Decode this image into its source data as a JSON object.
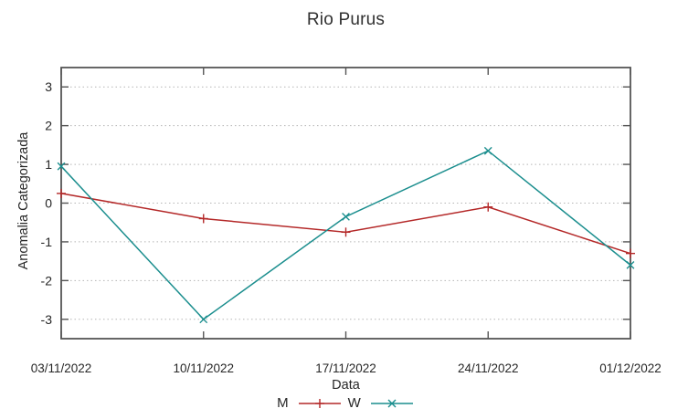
{
  "chart_data": {
    "type": "line",
    "title": "Rio Purus",
    "xlabel": "Data",
    "ylabel": "Anomalia Categorizada",
    "categories": [
      "03/11/2022",
      "10/11/2022",
      "17/11/2022",
      "24/11/2022",
      "01/12/2022"
    ],
    "yticks": [
      -3,
      -2,
      -1,
      0,
      1,
      2,
      3
    ],
    "ylim": [
      -3.5,
      3.5
    ],
    "grid": "horizontal dotted gridlines at integer y values, mirrored inward axis ticks",
    "legend_position": "bottom-center",
    "series": [
      {
        "name": "M",
        "color": "#b42828",
        "marker": "plus",
        "values": [
          0.25,
          -0.4,
          -0.75,
          -0.1,
          -1.3
        ]
      },
      {
        "name": "W",
        "color": "#1b8e8e",
        "marker": "cross",
        "values": [
          0.95,
          -3.0,
          -0.35,
          1.35,
          -1.6
        ]
      }
    ],
    "frame_color": "#555555",
    "gridline_color": "#b5b5b5",
    "text_color": "#262626"
  }
}
